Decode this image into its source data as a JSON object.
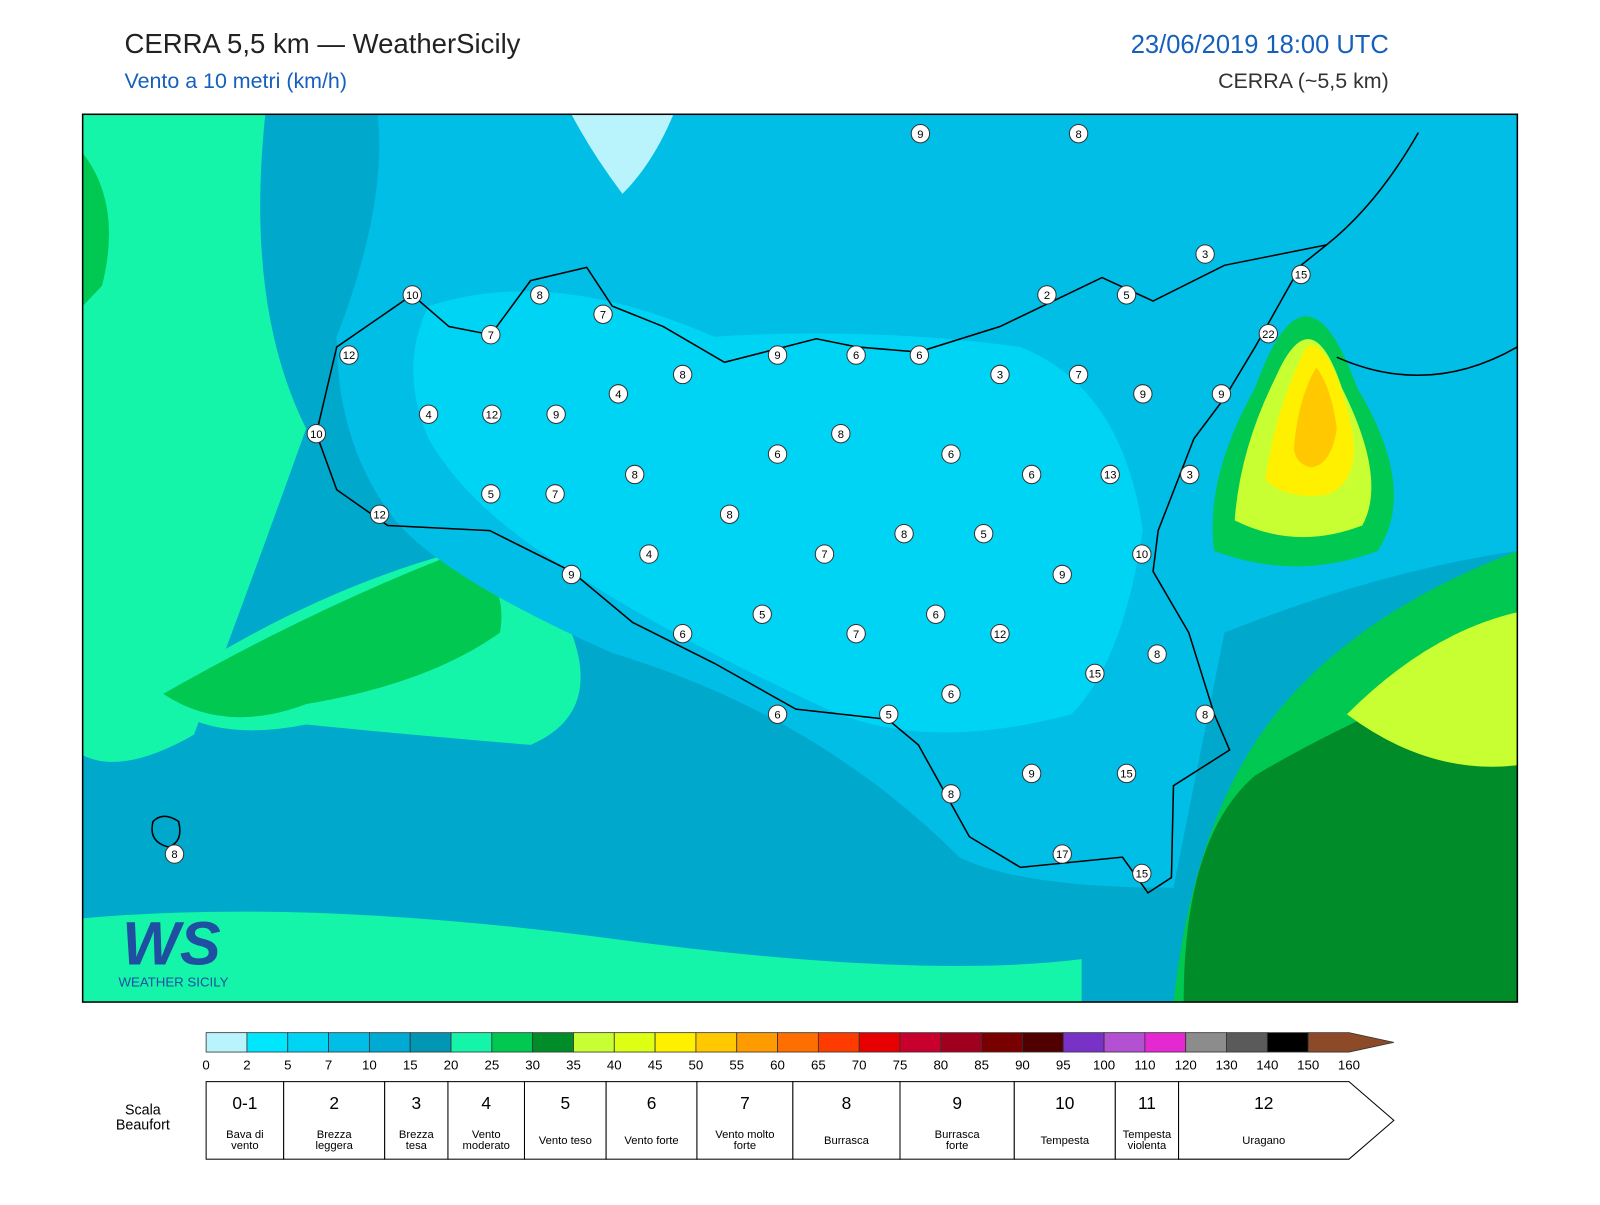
{
  "header": {
    "title": "CERRA 5,5 km — WeatherSicily",
    "subtitle": "Vento a 10 metri (km/h)",
    "date": "23/06/2019 18:00 UTC",
    "model": "CERRA (~5,5 km)"
  },
  "stations": [
    9,
    8,
    3,
    15,
    5,
    2,
    22,
    10,
    8,
    7,
    7,
    12,
    9,
    6,
    6,
    3,
    7,
    8,
    4,
    9,
    9,
    4,
    12,
    9,
    10,
    8,
    6,
    6,
    8,
    6,
    13,
    3,
    5,
    7,
    12,
    8,
    8,
    5,
    4,
    7,
    10,
    9,
    9,
    5,
    6,
    6,
    7,
    12,
    8,
    15,
    6,
    6,
    5,
    8,
    9,
    15,
    8,
    17,
    8,
    15
  ],
  "colorbar": {
    "ticks": [
      0,
      2,
      5,
      7,
      10,
      15,
      20,
      25,
      30,
      35,
      40,
      45,
      50,
      55,
      60,
      65,
      70,
      75,
      80,
      85,
      90,
      95,
      100,
      110,
      120,
      130,
      140,
      150,
      160
    ],
    "colors": [
      "#b9f3fb",
      "#00e6ff",
      "#00d4f5",
      "#00bee6",
      "#00aad2",
      "#0096b4",
      "#14f5aa",
      "#00c850",
      "#008c28",
      "#c8ff32",
      "#dcff14",
      "#fff000",
      "#ffc800",
      "#ff9a00",
      "#ff6e00",
      "#ff3c00",
      "#e60000",
      "#c8002d",
      "#a0001e",
      "#780000",
      "#500000",
      "#7832c8",
      "#b450d2",
      "#e628d2",
      "#8c8c8c",
      "#5a5a5a",
      "#000000",
      "#8c4a28",
      "#d28c50"
    ]
  },
  "beaufort": {
    "label": "Scala Beaufort",
    "levels": [
      {
        "force": "0-1",
        "name": "Bava di vento"
      },
      {
        "force": "2",
        "name": "Brezza leggera"
      },
      {
        "force": "3",
        "name": "Brezza tesa"
      },
      {
        "force": "4",
        "name": "Vento moderato"
      },
      {
        "force": "5",
        "name": "Vento teso"
      },
      {
        "force": "6",
        "name": "Vento forte"
      },
      {
        "force": "7",
        "name": "Vento molto forte"
      },
      {
        "force": "8",
        "name": "Burrasca"
      },
      {
        "force": "9",
        "name": "Burrasca forte"
      },
      {
        "force": "10",
        "name": "Tempesta"
      },
      {
        "force": "11",
        "name": "Tempesta violenta"
      },
      {
        "force": "12",
        "name": "Uragano"
      }
    ]
  },
  "logo": {
    "mark": "WS",
    "text": "WEATHER SICILY"
  }
}
